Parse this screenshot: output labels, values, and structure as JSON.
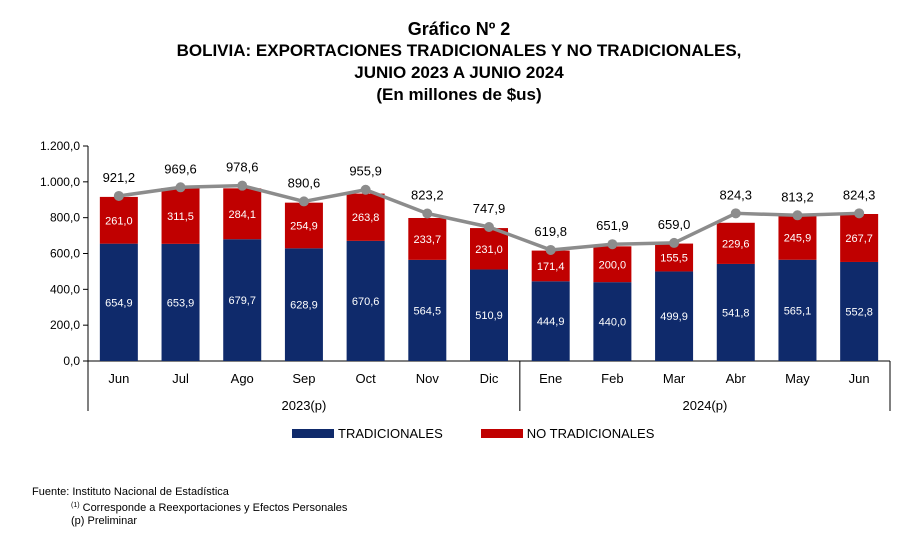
{
  "header": {
    "title": "Gráfico Nº 2",
    "subtitle1": "BOLIVIA: EXPORTACIONES TRADICIONALES Y NO TRADICIONALES,",
    "subtitle2": "JUNIO 2023 A JUNIO 2024",
    "subtitle3": "(En millones de $us)"
  },
  "chart_data": {
    "type": "bar",
    "stacked": true,
    "categories": [
      "Jun",
      "Jul",
      "Ago",
      "Sep",
      "Oct",
      "Nov",
      "Dic",
      "Ene",
      "Feb",
      "Mar",
      "Abr",
      "May",
      "Jun"
    ],
    "groups": [
      {
        "label": "2023(p)",
        "count": 7
      },
      {
        "label": "2024(p)",
        "count": 6
      }
    ],
    "series": [
      {
        "name": "TRADICIONALES",
        "color": "#0f2a6b",
        "values": [
          654.9,
          653.9,
          679.7,
          628.9,
          670.6,
          564.5,
          510.9,
          444.9,
          440.0,
          499.9,
          541.8,
          565.1,
          552.8
        ],
        "labels": [
          "654,9",
          "653,9",
          "679,7",
          "628,9",
          "670,6",
          "564,5",
          "510,9",
          "444,9",
          "440,0",
          "499,9",
          "541,8",
          "565,1",
          "552,8"
        ]
      },
      {
        "name": "NO TRADICIONALES",
        "color": "#c00000",
        "values": [
          261.0,
          311.5,
          284.1,
          254.9,
          263.8,
          233.7,
          231.0,
          171.4,
          200.0,
          155.5,
          229.6,
          245.9,
          267.7
        ],
        "labels": [
          "261,0",
          "311,5",
          "284,1",
          "254,9",
          "263,8",
          "233,7",
          "231,0",
          "171,4",
          "200,0",
          "155,5",
          "229,6",
          "245,9",
          "267,7"
        ]
      }
    ],
    "total": {
      "type": "line",
      "color": "#8c8c8c",
      "values": [
        921.2,
        969.6,
        978.6,
        890.6,
        955.9,
        823.2,
        747.9,
        619.8,
        651.9,
        659.0,
        824.3,
        813.2,
        824.3
      ],
      "labels": [
        "921,2",
        "969,6",
        "978,6",
        "890,6",
        "955,9",
        "823,2",
        "747,9",
        "619,8",
        "651,9",
        "659,0",
        "824,3",
        "813,2",
        "824,3"
      ]
    },
    "yaxis": {
      "min": 0,
      "max": 1200,
      "step": 200,
      "tick_labels": [
        "0,0",
        "200,0",
        "400,0",
        "600,0",
        "800,0",
        "1.000,0",
        "1.200,0"
      ]
    },
    "grid": false,
    "legend_position": "bottom"
  },
  "legend": [
    {
      "label": "TRADICIONALES",
      "color": "#0f2a6b"
    },
    {
      "label": "NO TRADICIONALES",
      "color": "#c00000"
    }
  ],
  "footer": {
    "source": "Fuente: Instituto Nacional de Estadística",
    "note1_mark": "(1)",
    "note1": " Corresponde a Reexportaciones y Efectos Personales",
    "note2": "(p) Preliminar"
  }
}
